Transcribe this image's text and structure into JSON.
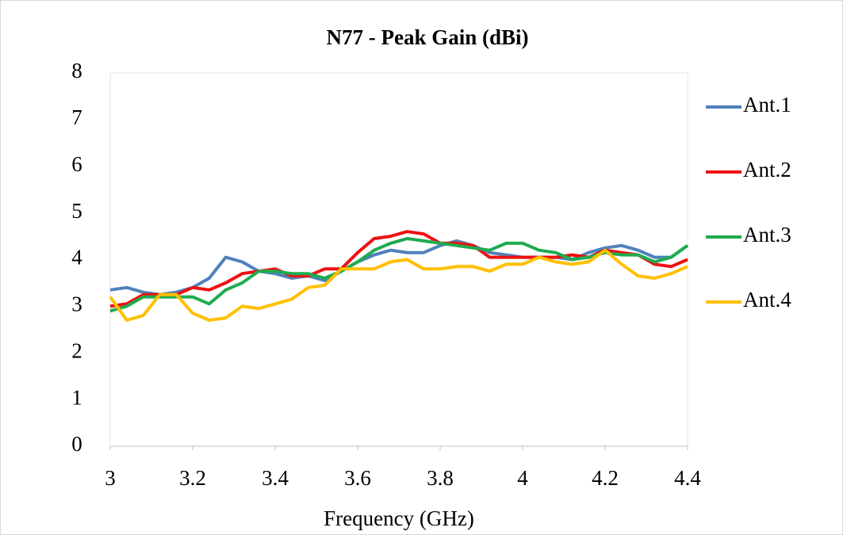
{
  "chart_data": {
    "type": "line",
    "title": "N77 - Peak Gain (dBi)",
    "x_label": "Frequency (GHz)",
    "x": [
      3.0,
      3.04,
      3.08,
      3.12,
      3.16,
      3.2,
      3.24,
      3.28,
      3.32,
      3.36,
      3.4,
      3.44,
      3.48,
      3.52,
      3.56,
      3.6,
      3.64,
      3.68,
      3.72,
      3.76,
      3.8,
      3.84,
      3.88,
      3.92,
      3.96,
      4.0,
      4.04,
      4.08,
      4.12,
      4.16,
      4.2,
      4.24,
      4.28,
      4.32,
      4.36,
      4.4
    ],
    "series": [
      {
        "name": "Ant.1",
        "color": "#4f81bd",
        "values": [
          3.35,
          3.4,
          3.3,
          3.25,
          3.3,
          3.4,
          3.6,
          4.05,
          3.95,
          3.75,
          3.7,
          3.6,
          3.65,
          3.55,
          3.75,
          3.95,
          4.1,
          4.2,
          4.15,
          4.15,
          4.3,
          4.4,
          4.3,
          4.15,
          4.1,
          4.05,
          4.05,
          4.05,
          4.0,
          4.15,
          4.25,
          4.3,
          4.2,
          4.05,
          4.05,
          4.3
        ]
      },
      {
        "name": "Ant.2",
        "color": "#ee1111",
        "values": [
          3.0,
          3.05,
          3.25,
          3.25,
          3.25,
          3.4,
          3.35,
          3.5,
          3.7,
          3.75,
          3.8,
          3.65,
          3.65,
          3.8,
          3.8,
          4.15,
          4.45,
          4.5,
          4.6,
          4.55,
          4.35,
          4.35,
          4.3,
          4.05,
          4.05,
          4.05,
          4.05,
          4.05,
          4.1,
          4.05,
          4.2,
          4.15,
          4.1,
          3.9,
          3.85,
          4.0
        ]
      },
      {
        "name": "Ant.3",
        "color": "#1fab4f",
        "values": [
          2.9,
          3.0,
          3.2,
          3.2,
          3.2,
          3.2,
          3.05,
          3.35,
          3.5,
          3.75,
          3.75,
          3.7,
          3.7,
          3.6,
          3.75,
          3.95,
          4.2,
          4.35,
          4.45,
          4.4,
          4.35,
          4.3,
          4.25,
          4.2,
          4.35,
          4.35,
          4.2,
          4.15,
          4.0,
          4.05,
          4.15,
          4.1,
          4.1,
          3.95,
          4.05,
          4.3
        ]
      },
      {
        "name": "Ant.4",
        "color": "#ffc000",
        "values": [
          3.2,
          2.7,
          2.8,
          3.25,
          3.25,
          2.85,
          2.7,
          2.75,
          3.0,
          2.95,
          3.05,
          3.15,
          3.4,
          3.45,
          3.8,
          3.8,
          3.8,
          3.95,
          4.0,
          3.8,
          3.8,
          3.85,
          3.85,
          3.75,
          3.9,
          3.9,
          4.05,
          3.95,
          3.9,
          3.95,
          4.2,
          3.9,
          3.65,
          3.6,
          3.7,
          3.85
        ]
      }
    ],
    "xlim": [
      3,
      4.4
    ],
    "xticks": [
      3,
      3.2,
      3.4,
      3.6,
      3.8,
      4,
      4.2,
      4.4
    ],
    "ylim": [
      0,
      8
    ],
    "yticks": [
      0,
      1,
      2,
      3,
      4,
      5,
      6,
      7,
      8
    ],
    "grid": false,
    "legend": "right"
  }
}
